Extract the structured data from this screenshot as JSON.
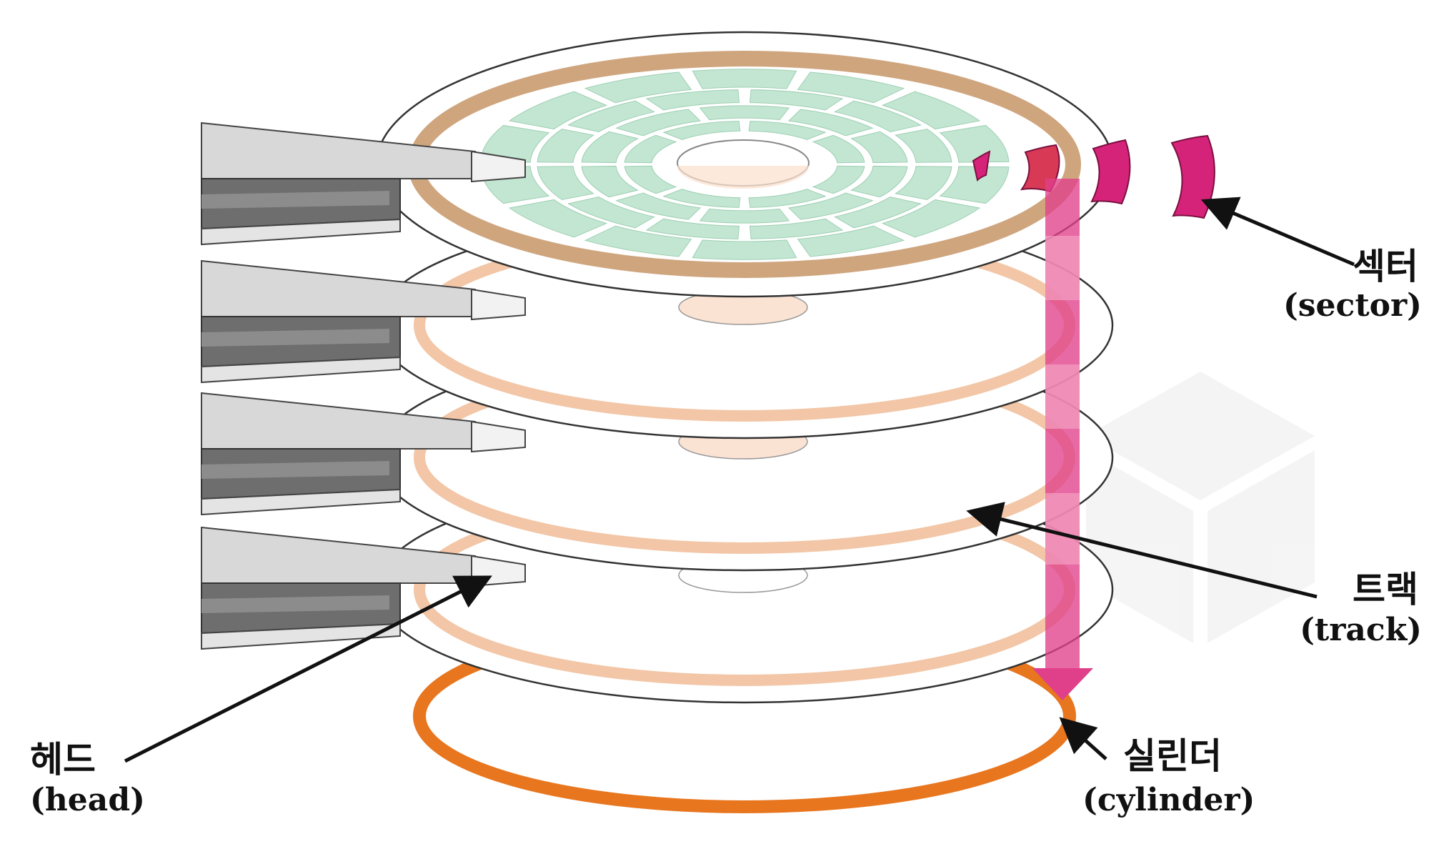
{
  "labels": {
    "sector_ko": "섹터",
    "sector_en": "(sector)",
    "track_ko": "트랙",
    "track_en": "(track)",
    "head_ko": "헤드",
    "head_en": "(head)",
    "cylinder_ko": "실린더",
    "cylinder_en": "(cylinder)"
  },
  "colors": {
    "track": "#f2c6a6",
    "top_track_band": "#cfa57e",
    "sector_block": "#c3e6d2",
    "sector_highlight": "#d6237a",
    "cylinder_arrow": "#e0408a",
    "cylinder_ring": "#e8761f",
    "head_light": "#d8d8d8",
    "head_dark": "#6e6e6e"
  }
}
